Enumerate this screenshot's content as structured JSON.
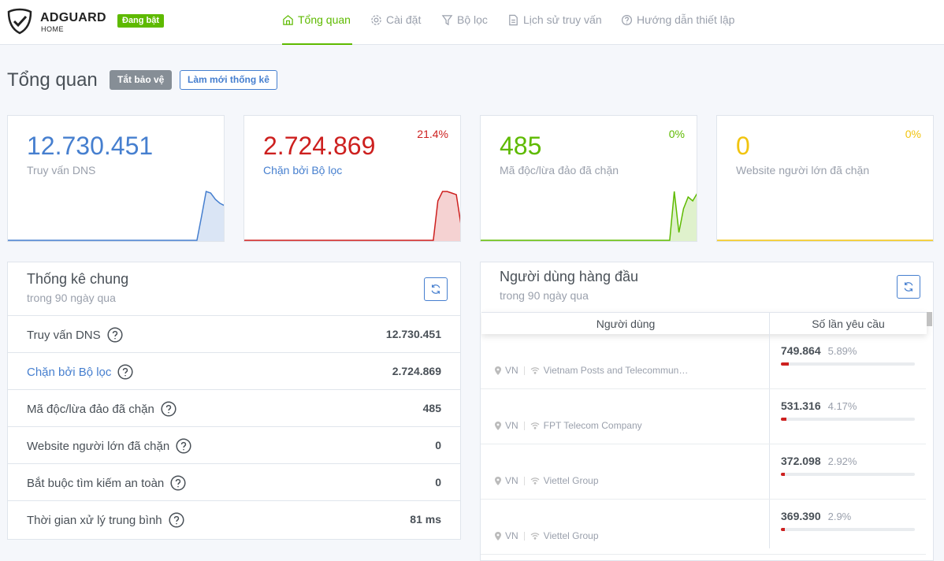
{
  "header": {
    "brand": "ADGUARD",
    "brand_sub": "HOME",
    "status": "Đang bật",
    "nav": [
      "Tổng quan",
      "Cài đặt",
      "Bộ lọc",
      "Lịch sử truy vấn",
      "Hướng dẫn thiết lập"
    ]
  },
  "page": {
    "title": "Tổng quan",
    "buttons": [
      "Tắt bảo vệ",
      "Làm mới thống kê"
    ]
  },
  "cards": [
    {
      "value": "12.730.451",
      "label": "Truy vấn DNS",
      "color": "#467fcf",
      "spark": [
        0,
        0,
        0,
        0,
        0,
        0,
        0,
        0,
        0,
        0,
        0,
        0,
        0,
        0,
        0,
        0,
        0,
        0,
        0,
        0,
        0,
        0,
        0,
        0,
        0,
        0,
        0,
        0,
        0,
        0,
        0,
        0,
        0,
        0,
        0,
        0,
        0,
        0,
        0,
        0,
        0,
        0,
        30,
        62,
        60,
        52,
        47,
        44
      ]
    },
    {
      "value": "2.724.869",
      "label": "Chặn bởi Bộ lọc",
      "percent": "21.4%",
      "color": "#cd201f",
      "spark": [
        0,
        0,
        0,
        0,
        0,
        0,
        0,
        0,
        0,
        0,
        0,
        0,
        0,
        0,
        0,
        0,
        0,
        0,
        0,
        0,
        0,
        0,
        0,
        0,
        0,
        0,
        0,
        0,
        0,
        0,
        0,
        0,
        0,
        0,
        0,
        0,
        0,
        0,
        0,
        0,
        0,
        0,
        50,
        62,
        62,
        60,
        58,
        20
      ]
    },
    {
      "value": "485",
      "label": "Mã độc/lừa đảo đã chặn",
      "percent": "0%",
      "color": "#5eba00",
      "spark": [
        0,
        0,
        0,
        0,
        0,
        0,
        0,
        0,
        0,
        0,
        0,
        0,
        0,
        0,
        0,
        0,
        0,
        0,
        0,
        0,
        0,
        0,
        0,
        0,
        0,
        0,
        0,
        0,
        0,
        0,
        0,
        0,
        0,
        0,
        0,
        0,
        0,
        0,
        0,
        0,
        0,
        0,
        62,
        10,
        40,
        55,
        50,
        60
      ]
    },
    {
      "value": "0",
      "label": "Website người lớn đã chặn",
      "percent": "0%",
      "color": "#f1c40f",
      "spark": [
        0,
        0,
        0,
        0,
        0,
        0,
        0,
        0,
        0,
        0,
        0,
        0,
        0,
        0,
        0,
        0,
        0,
        0,
        0,
        0,
        0,
        0,
        0,
        0,
        0,
        0,
        0,
        0,
        0,
        0,
        0,
        0,
        0,
        0,
        0,
        0,
        0,
        0,
        0,
        0,
        0,
        0,
        0,
        0,
        0,
        0,
        0,
        0
      ]
    }
  ],
  "stats": {
    "title": "Thống kê chung",
    "subtitle": "trong 90 ngày qua",
    "rows": [
      {
        "label": "Truy vấn DNS",
        "value": "12.730.451"
      },
      {
        "label": "Chặn bởi Bộ lọc",
        "value": "2.724.869"
      },
      {
        "label": "Mã độc/lừa đảo đã chặn",
        "value": "485"
      },
      {
        "label": "Website người lớn đã chặn",
        "value": "0"
      },
      {
        "label": "Bắt buộc tìm kiếm an toàn",
        "value": "0"
      },
      {
        "label": "Thời gian xử lý trung bình",
        "value": "81 ms"
      }
    ]
  },
  "clients": {
    "title": "Người dùng hàng đầu",
    "subtitle": "trong 90 ngày qua",
    "columns": [
      "Người dùng",
      "Số lần yêu cầu"
    ],
    "rows": [
      {
        "country": "VN",
        "network": "Vietnam Posts and Telecommun…",
        "count": "749.864",
        "percent": 5.89,
        "percent_label": "5.89%"
      },
      {
        "country": "VN",
        "network": "FPT Telecom Company",
        "count": "531.316",
        "percent": 4.17,
        "percent_label": "4.17%"
      },
      {
        "country": "VN",
        "network": "Viettel Group",
        "count": "372.098",
        "percent": 2.92,
        "percent_label": "2.92%"
      },
      {
        "country": "VN",
        "network": "Viettel Group",
        "count": "369.390",
        "percent": 2.9,
        "percent_label": "2.9%"
      }
    ]
  }
}
